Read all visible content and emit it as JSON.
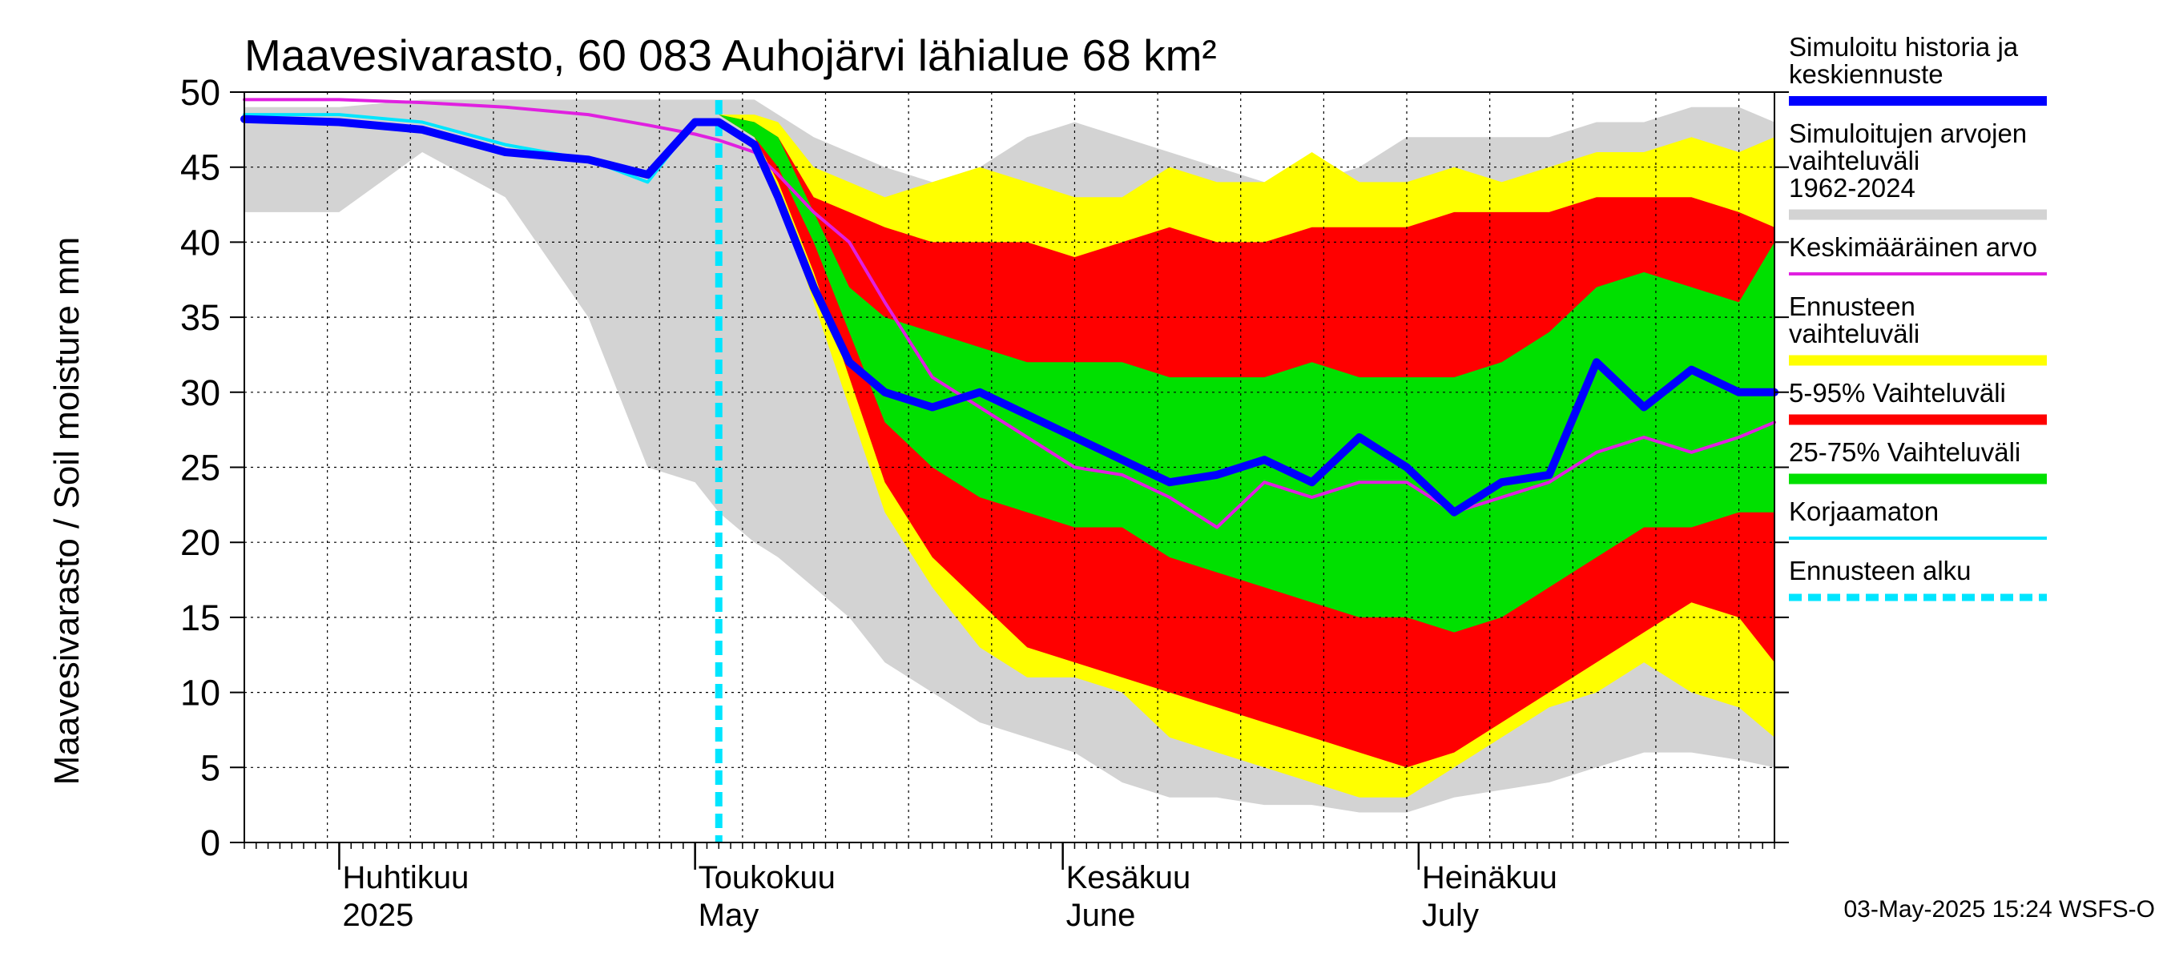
{
  "chart_data": {
    "type": "area",
    "title": "Maavesivarasto, 60 083 Auhojärvi lähialue 68 km²",
    "ylabel": "Maavesivarasto / Soil moisture   mm",
    "ylim": [
      0,
      50
    ],
    "yticks": [
      0,
      5,
      10,
      15,
      20,
      25,
      30,
      35,
      40,
      45,
      50
    ],
    "xlim": [
      "2025-03-24",
      "2025-07-31"
    ],
    "forecast_start": "2025-05-03",
    "grid": true,
    "month_labels": [
      {
        "date": "2025-04-01",
        "line1": "Huhtikuu",
        "line2": "2025"
      },
      {
        "date": "2025-05-01",
        "line1": "Toukokuu",
        "line2": "May"
      },
      {
        "date": "2025-06-01",
        "line1": "Kesäkuu",
        "line2": "June"
      },
      {
        "date": "2025-07-01",
        "line1": "Heinäkuu",
        "line2": "July"
      }
    ],
    "x": [
      "2025-03-24",
      "2025-04-01",
      "2025-04-08",
      "2025-04-15",
      "2025-04-22",
      "2025-04-27",
      "2025-05-01",
      "2025-05-03",
      "2025-05-06",
      "2025-05-08",
      "2025-05-11",
      "2025-05-14",
      "2025-05-17",
      "2025-05-21",
      "2025-05-25",
      "2025-05-29",
      "2025-06-02",
      "2025-06-06",
      "2025-06-10",
      "2025-06-14",
      "2025-06-18",
      "2025-06-22",
      "2025-06-26",
      "2025-06-30",
      "2025-07-04",
      "2025-07-08",
      "2025-07-12",
      "2025-07-16",
      "2025-07-20",
      "2025-07-24",
      "2025-07-28",
      "2025-07-31"
    ],
    "series": [
      {
        "name": "Simuloitujen arvojen vaihteluväli 1962-2024",
        "role": "range",
        "color": "#d3d3d3",
        "low": [
          42,
          42,
          46,
          43,
          35,
          25,
          24,
          22,
          20,
          19,
          17,
          15,
          12,
          10,
          8,
          7,
          6,
          4,
          3,
          3,
          2.5,
          2.5,
          2,
          2,
          3,
          3.5,
          4,
          5,
          6,
          6,
          5.5,
          5
        ],
        "high": [
          49,
          49,
          49.5,
          49.5,
          49.5,
          49.5,
          49.5,
          49.5,
          49.5,
          48.5,
          47,
          46,
          45,
          44,
          45,
          47,
          48,
          47,
          46,
          45,
          44,
          44,
          45,
          47,
          47,
          47,
          47,
          48,
          48,
          49,
          49,
          48
        ]
      },
      {
        "name": "Ennusteen vaihteluväli",
        "role": "range",
        "color": "#ffff00",
        "low": [
          null,
          null,
          null,
          null,
          null,
          null,
          null,
          48.5,
          47,
          43,
          36,
          29,
          22,
          17,
          13,
          11,
          11,
          10,
          7,
          6,
          5,
          4,
          3,
          3,
          5,
          7,
          9,
          10,
          12,
          10,
          9,
          7
        ],
        "high": [
          null,
          null,
          null,
          null,
          null,
          null,
          null,
          48.5,
          48.5,
          48,
          45,
          44,
          43,
          44,
          45,
          44,
          43,
          43,
          45,
          44,
          44,
          46,
          44,
          44,
          45,
          44,
          45,
          46,
          46,
          47,
          46,
          47
        ]
      },
      {
        "name": "5-95% Vaihteluväli",
        "role": "range",
        "color": "#ff0000",
        "low": [
          null,
          null,
          null,
          null,
          null,
          null,
          null,
          48.5,
          47,
          44,
          38,
          31,
          24,
          19,
          16,
          13,
          12,
          11,
          10,
          9,
          8,
          7,
          6,
          5,
          6,
          8,
          10,
          12,
          14,
          16,
          15,
          12
        ],
        "high": [
          null,
          null,
          null,
          null,
          null,
          null,
          null,
          48.5,
          48,
          47,
          43,
          42,
          41,
          40,
          40,
          40,
          39,
          40,
          41,
          40,
          40,
          41,
          41,
          41,
          42,
          42,
          42,
          43,
          43,
          43,
          42,
          41
        ]
      },
      {
        "name": "25-75% Vaihteluväli",
        "role": "range",
        "color": "#00e000",
        "low": [
          null,
          null,
          null,
          null,
          null,
          null,
          null,
          48.5,
          47,
          45,
          40,
          34,
          28,
          25,
          23,
          22,
          21,
          21,
          19,
          18,
          17,
          16,
          15,
          15,
          14,
          15,
          17,
          19,
          21,
          21,
          22,
          22
        ]
      },
      {
        "name": "25-75% Vaihteluväli high",
        "role": "range-upper",
        "color": "#00e000",
        "high": [
          null,
          null,
          null,
          null,
          null,
          null,
          null,
          48.5,
          48,
          47,
          42,
          37,
          35,
          34,
          33,
          32,
          32,
          32,
          31,
          31,
          31,
          32,
          31,
          31,
          31,
          32,
          34,
          37,
          38,
          37,
          36,
          40
        ]
      },
      {
        "name": "Keskimääräinen arvo",
        "role": "line",
        "color": "#e020e0",
        "width": 4,
        "values": [
          49.5,
          49.5,
          49.3,
          49,
          48.5,
          47.8,
          47.2,
          46.8,
          46,
          44.5,
          42,
          40,
          36,
          31,
          29,
          27,
          25,
          24.5,
          23,
          21,
          24,
          23,
          24,
          24,
          22,
          23,
          24,
          26,
          27,
          26,
          27,
          28
        ]
      },
      {
        "name": "Korjaamaton",
        "role": "line",
        "color": "#00e5ff",
        "width": 4,
        "values": [
          48.5,
          48.5,
          48,
          46.5,
          45.5,
          44,
          48,
          48,
          null,
          null,
          null,
          null,
          null,
          null,
          null,
          null,
          null,
          null,
          null,
          null,
          null,
          null,
          null,
          null,
          null,
          null,
          null,
          null,
          null,
          null,
          null,
          null
        ]
      },
      {
        "name": "Simuloitu historia ja keskiennuste",
        "role": "line",
        "color": "#0000ff",
        "width": 10,
        "values": [
          48.2,
          48,
          47.5,
          46,
          45.5,
          44.5,
          48,
          48,
          46.5,
          43,
          37,
          32,
          30,
          29,
          30,
          28.5,
          27,
          25.5,
          24,
          24.5,
          25.5,
          24,
          27,
          25,
          22,
          24,
          24.5,
          32,
          29,
          31.5,
          30,
          30
        ]
      }
    ],
    "legend": [
      {
        "label": "Simuloitu historia ja keskiennuste",
        "color": "#0000ff",
        "kind": "thick"
      },
      {
        "label": "Simuloitujen arvojen vaihteluväli 1962-2024",
        "color": "#d3d3d3",
        "kind": "band"
      },
      {
        "label": "Keskimääräinen arvo",
        "color": "#e020e0",
        "kind": "line"
      },
      {
        "label": "Ennusteen vaihteluväli",
        "color": "#ffff00",
        "kind": "band"
      },
      {
        "label": "5-95% Vaihteluväli",
        "color": "#ff0000",
        "kind": "band"
      },
      {
        "label": "25-75% Vaihteluväli",
        "color": "#00e000",
        "kind": "band"
      },
      {
        "label": "Korjaamaton",
        "color": "#00e5ff",
        "kind": "line"
      },
      {
        "label": "Ennusteen alku",
        "color": "#00e5ff",
        "kind": "dashed"
      }
    ],
    "stamp": "03-May-2025 15:24 WSFS-O"
  }
}
